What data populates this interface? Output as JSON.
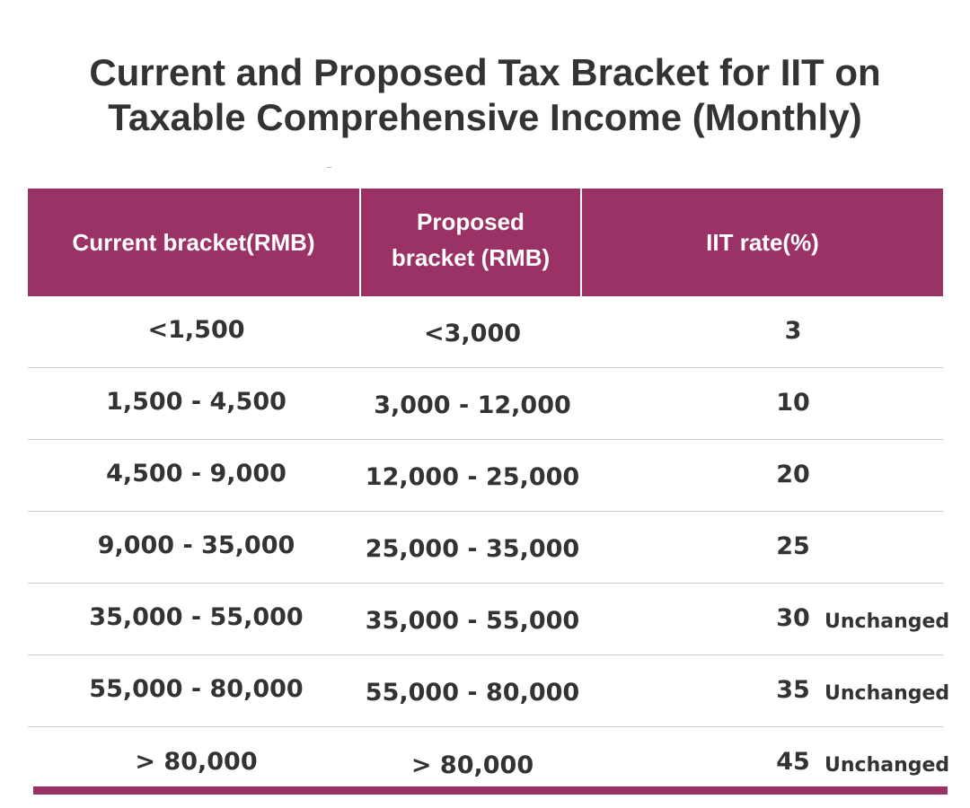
{
  "title": {
    "line1": "Current and Proposed Tax Bracket for IIT on",
    "line2": "Taxable Comprehensive Income (Monthly)"
  },
  "colors": {
    "header_bg": "#9a3265",
    "accent_bar": "#9a3265",
    "text": "#333333",
    "row_divider": "#c9c9c9"
  },
  "table": {
    "headers": {
      "current": "Current bracket(RMB)",
      "proposed_line1": "Proposed",
      "proposed_line2": "bracket (RMB)",
      "rate": "IIT rate(%)"
    },
    "rows": [
      {
        "current": "<1,500",
        "proposed": "<3,000",
        "rate": "3",
        "note": ""
      },
      {
        "current": "1,500 - 4,500",
        "proposed": "3,000 - 12,000",
        "rate": "10",
        "note": ""
      },
      {
        "current": "4,500 - 9,000",
        "proposed": "12,000 -  25,000",
        "rate": "20",
        "note": ""
      },
      {
        "current": "9,000 - 35,000",
        "proposed": "25,000 -  35,000",
        "rate": "25",
        "note": ""
      },
      {
        "current": "35,000 - 55,000",
        "proposed": "35,000 - 55,000",
        "rate": "30",
        "note": "Unchanged"
      },
      {
        "current": "55,000 - 80,000",
        "proposed": "55,000 - 80,000",
        "rate": "35",
        "note": "Unchanged"
      },
      {
        "current": "> 80,000",
        "proposed": "> 80,000",
        "rate": "45",
        "note": "Unchanged"
      }
    ]
  }
}
